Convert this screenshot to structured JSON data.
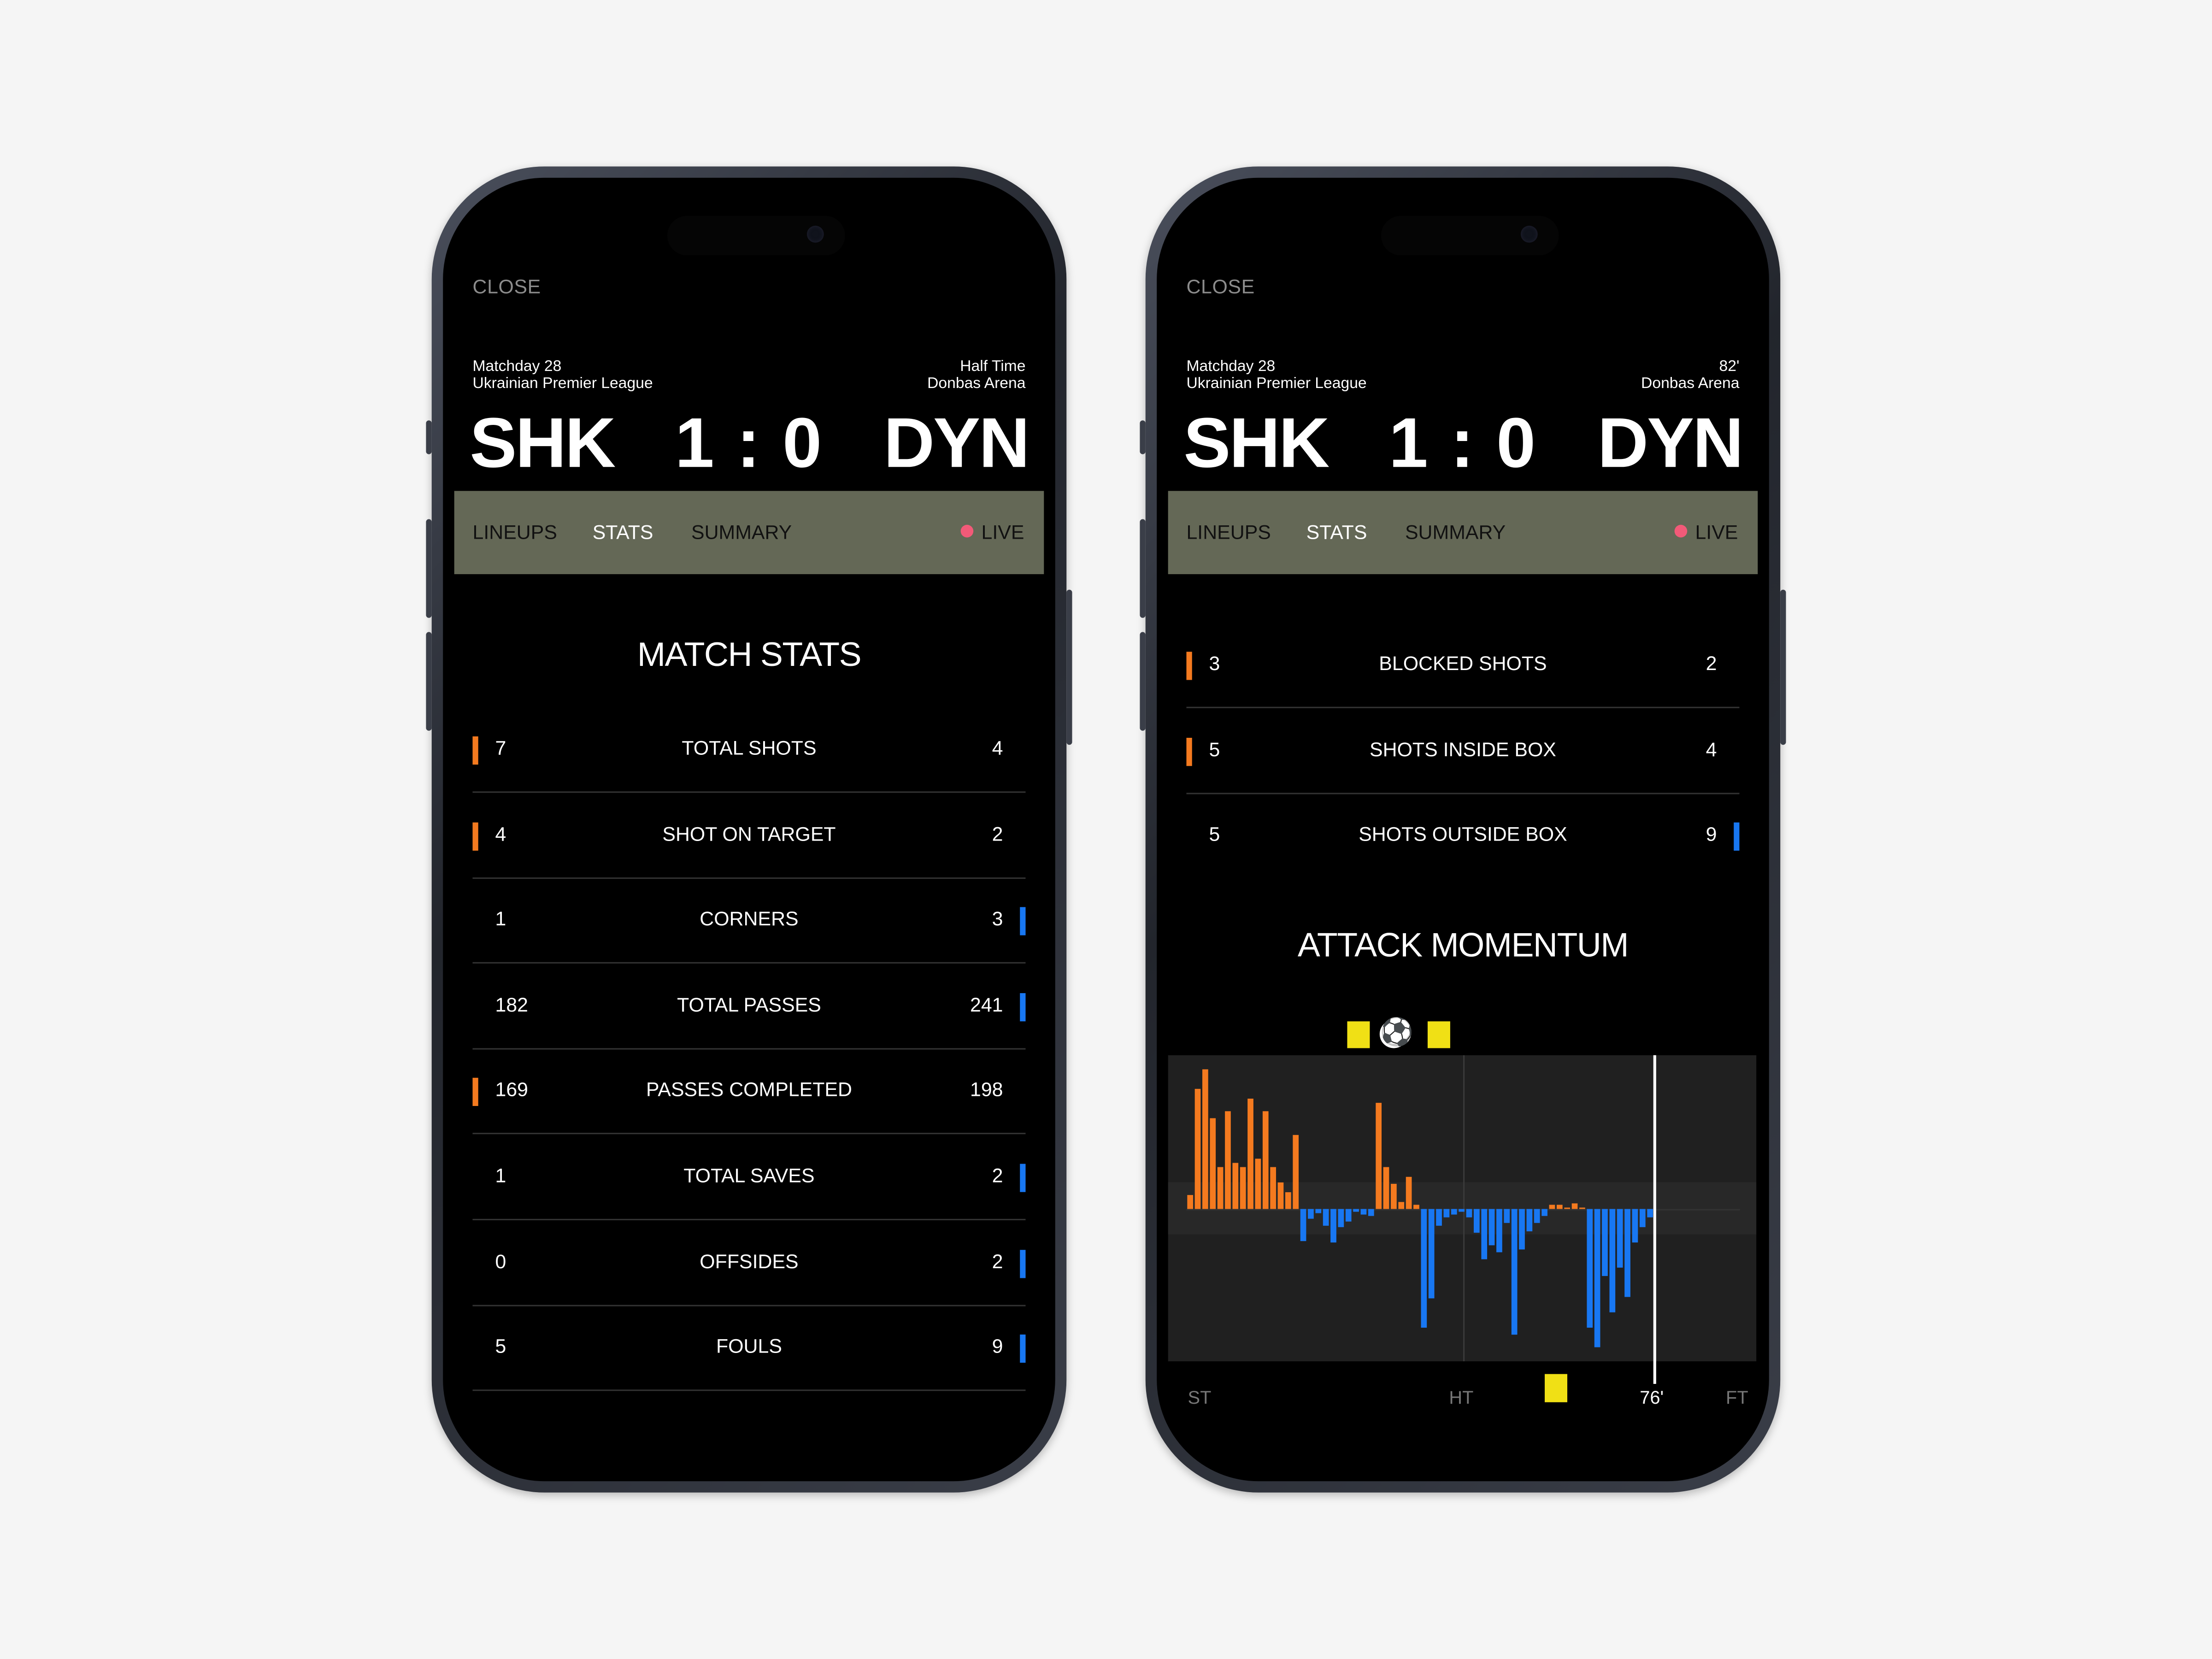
{
  "colors": {
    "home": "#f47a1f",
    "away": "#1877f2",
    "card": "#f0e015",
    "live": "#f25a78",
    "tabbar": "#646856"
  },
  "screens": [
    {
      "close_label": "CLOSE",
      "matchday": "Matchday 28",
      "league": "Ukrainian Premier League",
      "status": "Half Time",
      "venue": "Donbas Arena",
      "home_team": "SHK",
      "away_team": "DYN",
      "score": "1 : 0",
      "tabs": [
        "LINEUPS",
        "STATS",
        "SUMMARY"
      ],
      "active_tab": "STATS",
      "live_label": "LIVE",
      "section_title": "MATCH STATS",
      "stats": [
        {
          "label": "TOTAL SHOTS",
          "home": "7",
          "away": "4",
          "leader": "home"
        },
        {
          "label": "SHOT ON TARGET",
          "home": "4",
          "away": "2",
          "leader": "home"
        },
        {
          "label": "CORNERS",
          "home": "1",
          "away": "3",
          "leader": "away"
        },
        {
          "label": "TOTAL PASSES",
          "home": "182",
          "away": "241",
          "leader": "away"
        },
        {
          "label": "PASSES COMPLETED",
          "home": "169",
          "away": "198",
          "leader": "home"
        },
        {
          "label": "TOTAL SAVES",
          "home": "1",
          "away": "2",
          "leader": "away"
        },
        {
          "label": "OFFSIDES",
          "home": "0",
          "away": "2",
          "leader": "away"
        },
        {
          "label": "FOULS",
          "home": "5",
          "away": "9",
          "leader": "away"
        }
      ]
    },
    {
      "close_label": "CLOSE",
      "matchday": "Matchday 28",
      "league": "Ukrainian Premier League",
      "status": "82'",
      "venue": "Donbas Arena",
      "home_team": "SHK",
      "away_team": "DYN",
      "score": "1 : 0",
      "tabs": [
        "LINEUPS",
        "STATS",
        "SUMMARY"
      ],
      "active_tab": "STATS",
      "live_label": "LIVE",
      "stats": [
        {
          "label": "BLOCKED SHOTS",
          "home": "3",
          "away": "2",
          "leader": "home"
        },
        {
          "label": "SHOTS INSIDE BOX",
          "home": "5",
          "away": "4",
          "leader": "home"
        },
        {
          "label": "SHOTS OUTSIDE BOX",
          "home": "5",
          "away": "9",
          "leader": "away"
        }
      ],
      "momentum_title": "ATTACK MOMENTUM"
    }
  ],
  "chart_data": {
    "type": "bar",
    "title": "ATTACK MOMENTUM",
    "x_ticks": [
      "ST",
      "HT",
      "76'",
      "FT"
    ],
    "x_range_minutes": [
      0,
      90
    ],
    "current_minute": 76,
    "halftime_minute": 45,
    "ylim": [
      -100,
      100
    ],
    "positive_series": "home",
    "negative_series": "away",
    "values": [
      10,
      86,
      100,
      65,
      30,
      70,
      33,
      30,
      79,
      36,
      70,
      30,
      19,
      12,
      53,
      -23,
      -7,
      -3,
      -12,
      -24,
      -13,
      -9,
      -2,
      -4,
      -5,
      76,
      30,
      18,
      5,
      23,
      3,
      -85,
      -64,
      -12,
      -6,
      -4,
      -2,
      -6,
      -17,
      -36,
      -26,
      -31,
      -10,
      -90,
      -29,
      -16,
      -10,
      -5,
      3,
      3,
      1,
      4,
      1,
      -85,
      -99,
      -48,
      -74,
      -42,
      -63,
      -24,
      -13,
      -6
    ],
    "events": [
      {
        "type": "yellow-card",
        "minute": 28,
        "position": "top"
      },
      {
        "type": "goal",
        "minute": 34,
        "position": "top"
      },
      {
        "type": "yellow-card",
        "minute": 41,
        "position": "top"
      },
      {
        "type": "yellow-card",
        "minute": 60,
        "position": "bottom"
      }
    ]
  }
}
